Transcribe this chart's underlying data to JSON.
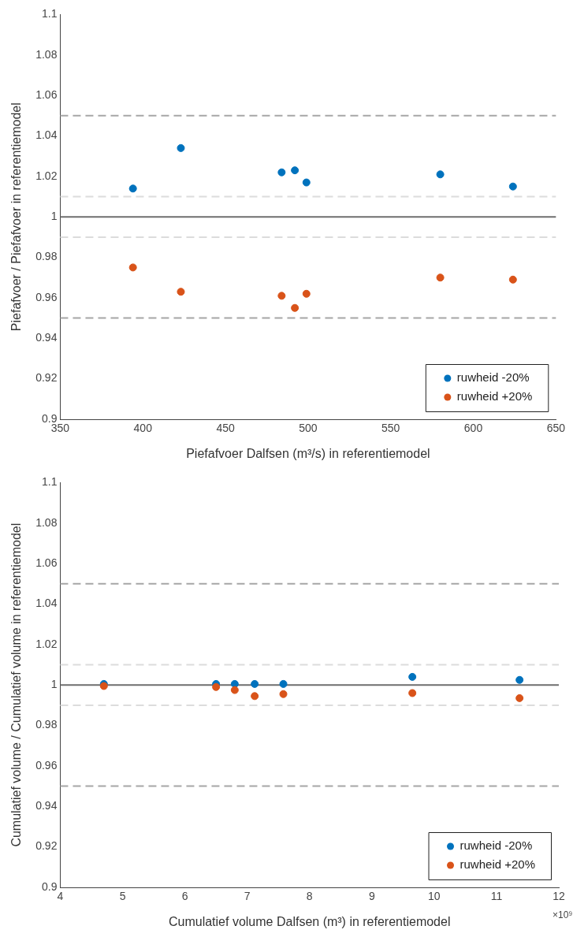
{
  "chart_data": [
    {
      "type": "scatter",
      "xlabel": "Piefafvoer Dalfsen (m³/s) in referentiemodel",
      "ylabel": "Piefafvoer / Piefafvoer in referentiemodel",
      "x": [
        394,
        423,
        484,
        492,
        499,
        580,
        624
      ],
      "series": [
        {
          "name": "ruwheid -20%",
          "color": "#0072bd",
          "values": [
            1.014,
            1.034,
            1.022,
            1.023,
            1.017,
            1.021,
            1.015
          ]
        },
        {
          "name": "ruwheid +20%",
          "color": "#d95319",
          "values": [
            0.975,
            0.963,
            0.961,
            0.955,
            0.962,
            0.97,
            0.969
          ]
        }
      ],
      "xlim": [
        350,
        650
      ],
      "xticks": [
        350,
        400,
        450,
        500,
        550,
        600,
        650
      ],
      "ylim": [
        0.9,
        1.1
      ],
      "yticks": [
        0.9,
        0.92,
        0.94,
        0.96,
        0.98,
        1,
        1.02,
        1.04,
        1.06,
        1.08,
        1.1
      ],
      "ref_lines": [
        {
          "axis": "y",
          "value": 1.05,
          "color": "#a6a6a6",
          "line_style": "dashed"
        },
        {
          "axis": "y",
          "value": 1.01,
          "color": "#dcdcdc",
          "line_style": "dashed"
        },
        {
          "axis": "y",
          "value": 1,
          "color": "#6e6e6e",
          "line_style": "solid"
        },
        {
          "axis": "y",
          "value": 0.99,
          "color": "#dcdcdc",
          "line_style": "dashed"
        },
        {
          "axis": "y",
          "value": 0.95,
          "color": "#a6a6a6",
          "line_style": "dashed"
        }
      ],
      "marker": "circle",
      "grid": false,
      "legend": "bottom right"
    },
    {
      "type": "scatter",
      "xlabel": "Cumulatief volume Dalfsen (m³) in referentiemodel",
      "ylabel": "Cumulatief volume / Cumulatief volume in referentiemodel",
      "annotations": [
        "×10⁹"
      ],
      "x": [
        4.7,
        6.5,
        6.8,
        7.12,
        7.58,
        9.65,
        11.37
      ],
      "series": [
        {
          "name": "ruwheid -20%",
          "color": "#0072bd",
          "values": [
            1.0005,
            1.0005,
            1.0005,
            1.0005,
            1.0005,
            1.004,
            1.0025
          ]
        },
        {
          "name": "ruwheid +20%",
          "color": "#d95319",
          "values": [
            0.9995,
            0.999,
            0.9975,
            0.9945,
            0.9955,
            0.996,
            0.9935
          ]
        }
      ],
      "xlim": [
        4,
        12
      ],
      "xticks": [
        4,
        5,
        6,
        7,
        8,
        9,
        10,
        11,
        12
      ],
      "ylim": [
        0.9,
        1.1
      ],
      "yticks": [
        0.9,
        0.92,
        0.94,
        0.96,
        0.98,
        1,
        1.02,
        1.04,
        1.06,
        1.08,
        1.1
      ],
      "ref_lines": [
        {
          "axis": "y",
          "value": 1.05,
          "color": "#a6a6a6",
          "line_style": "dashed"
        },
        {
          "axis": "y",
          "value": 1.01,
          "color": "#dcdcdc",
          "line_style": "dashed"
        },
        {
          "axis": "y",
          "value": 1,
          "color": "#6e6e6e",
          "line_style": "solid"
        },
        {
          "axis": "y",
          "value": 0.99,
          "color": "#dcdcdc",
          "line_style": "dashed"
        },
        {
          "axis": "y",
          "value": 0.95,
          "color": "#a6a6a6",
          "line_style": "dashed"
        }
      ],
      "marker": "circle",
      "grid": false,
      "legend": "bottom right"
    }
  ]
}
